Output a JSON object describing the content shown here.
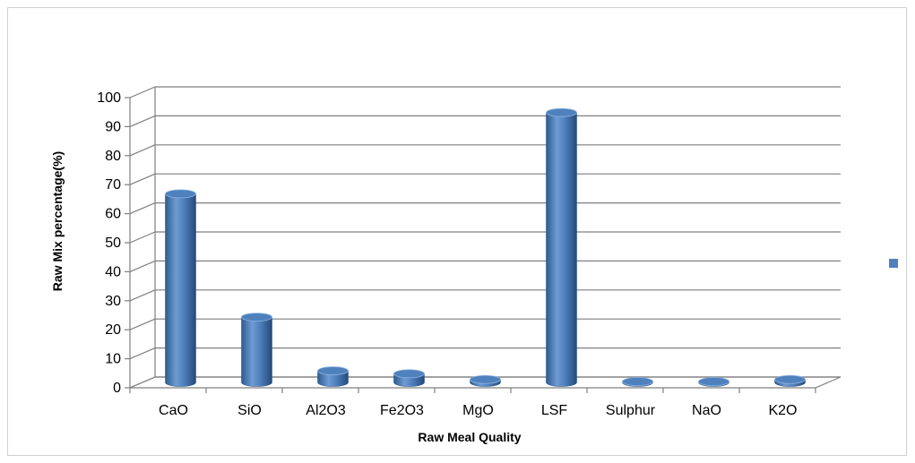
{
  "chart_data": {
    "type": "bar",
    "style": "3d-cylinder",
    "categories": [
      "CaO",
      "SiO",
      "Al2O3",
      "Fe2O3",
      "MgO",
      "LSF",
      "Sulphur",
      "NaO",
      "K2O"
    ],
    "series": [
      {
        "values": [
          65,
          22.5,
          4,
          3,
          1,
          93,
          0.3,
          0.3,
          1
        ]
      }
    ],
    "title": "",
    "xlabel": "Raw Meal Quality",
    "ylabel": "Raw Mix percentage(%)",
    "ylim": [
      0,
      100
    ],
    "yticks": [
      0,
      10,
      20,
      30,
      40,
      50,
      60,
      70,
      80,
      90,
      100
    ],
    "grid": true,
    "legend": "right",
    "colors": {
      "bar": "#4f81bd",
      "bar_dark": "#2f5b8f",
      "bar_light": "#8db3e2",
      "grid": "#7f7f7f"
    }
  }
}
